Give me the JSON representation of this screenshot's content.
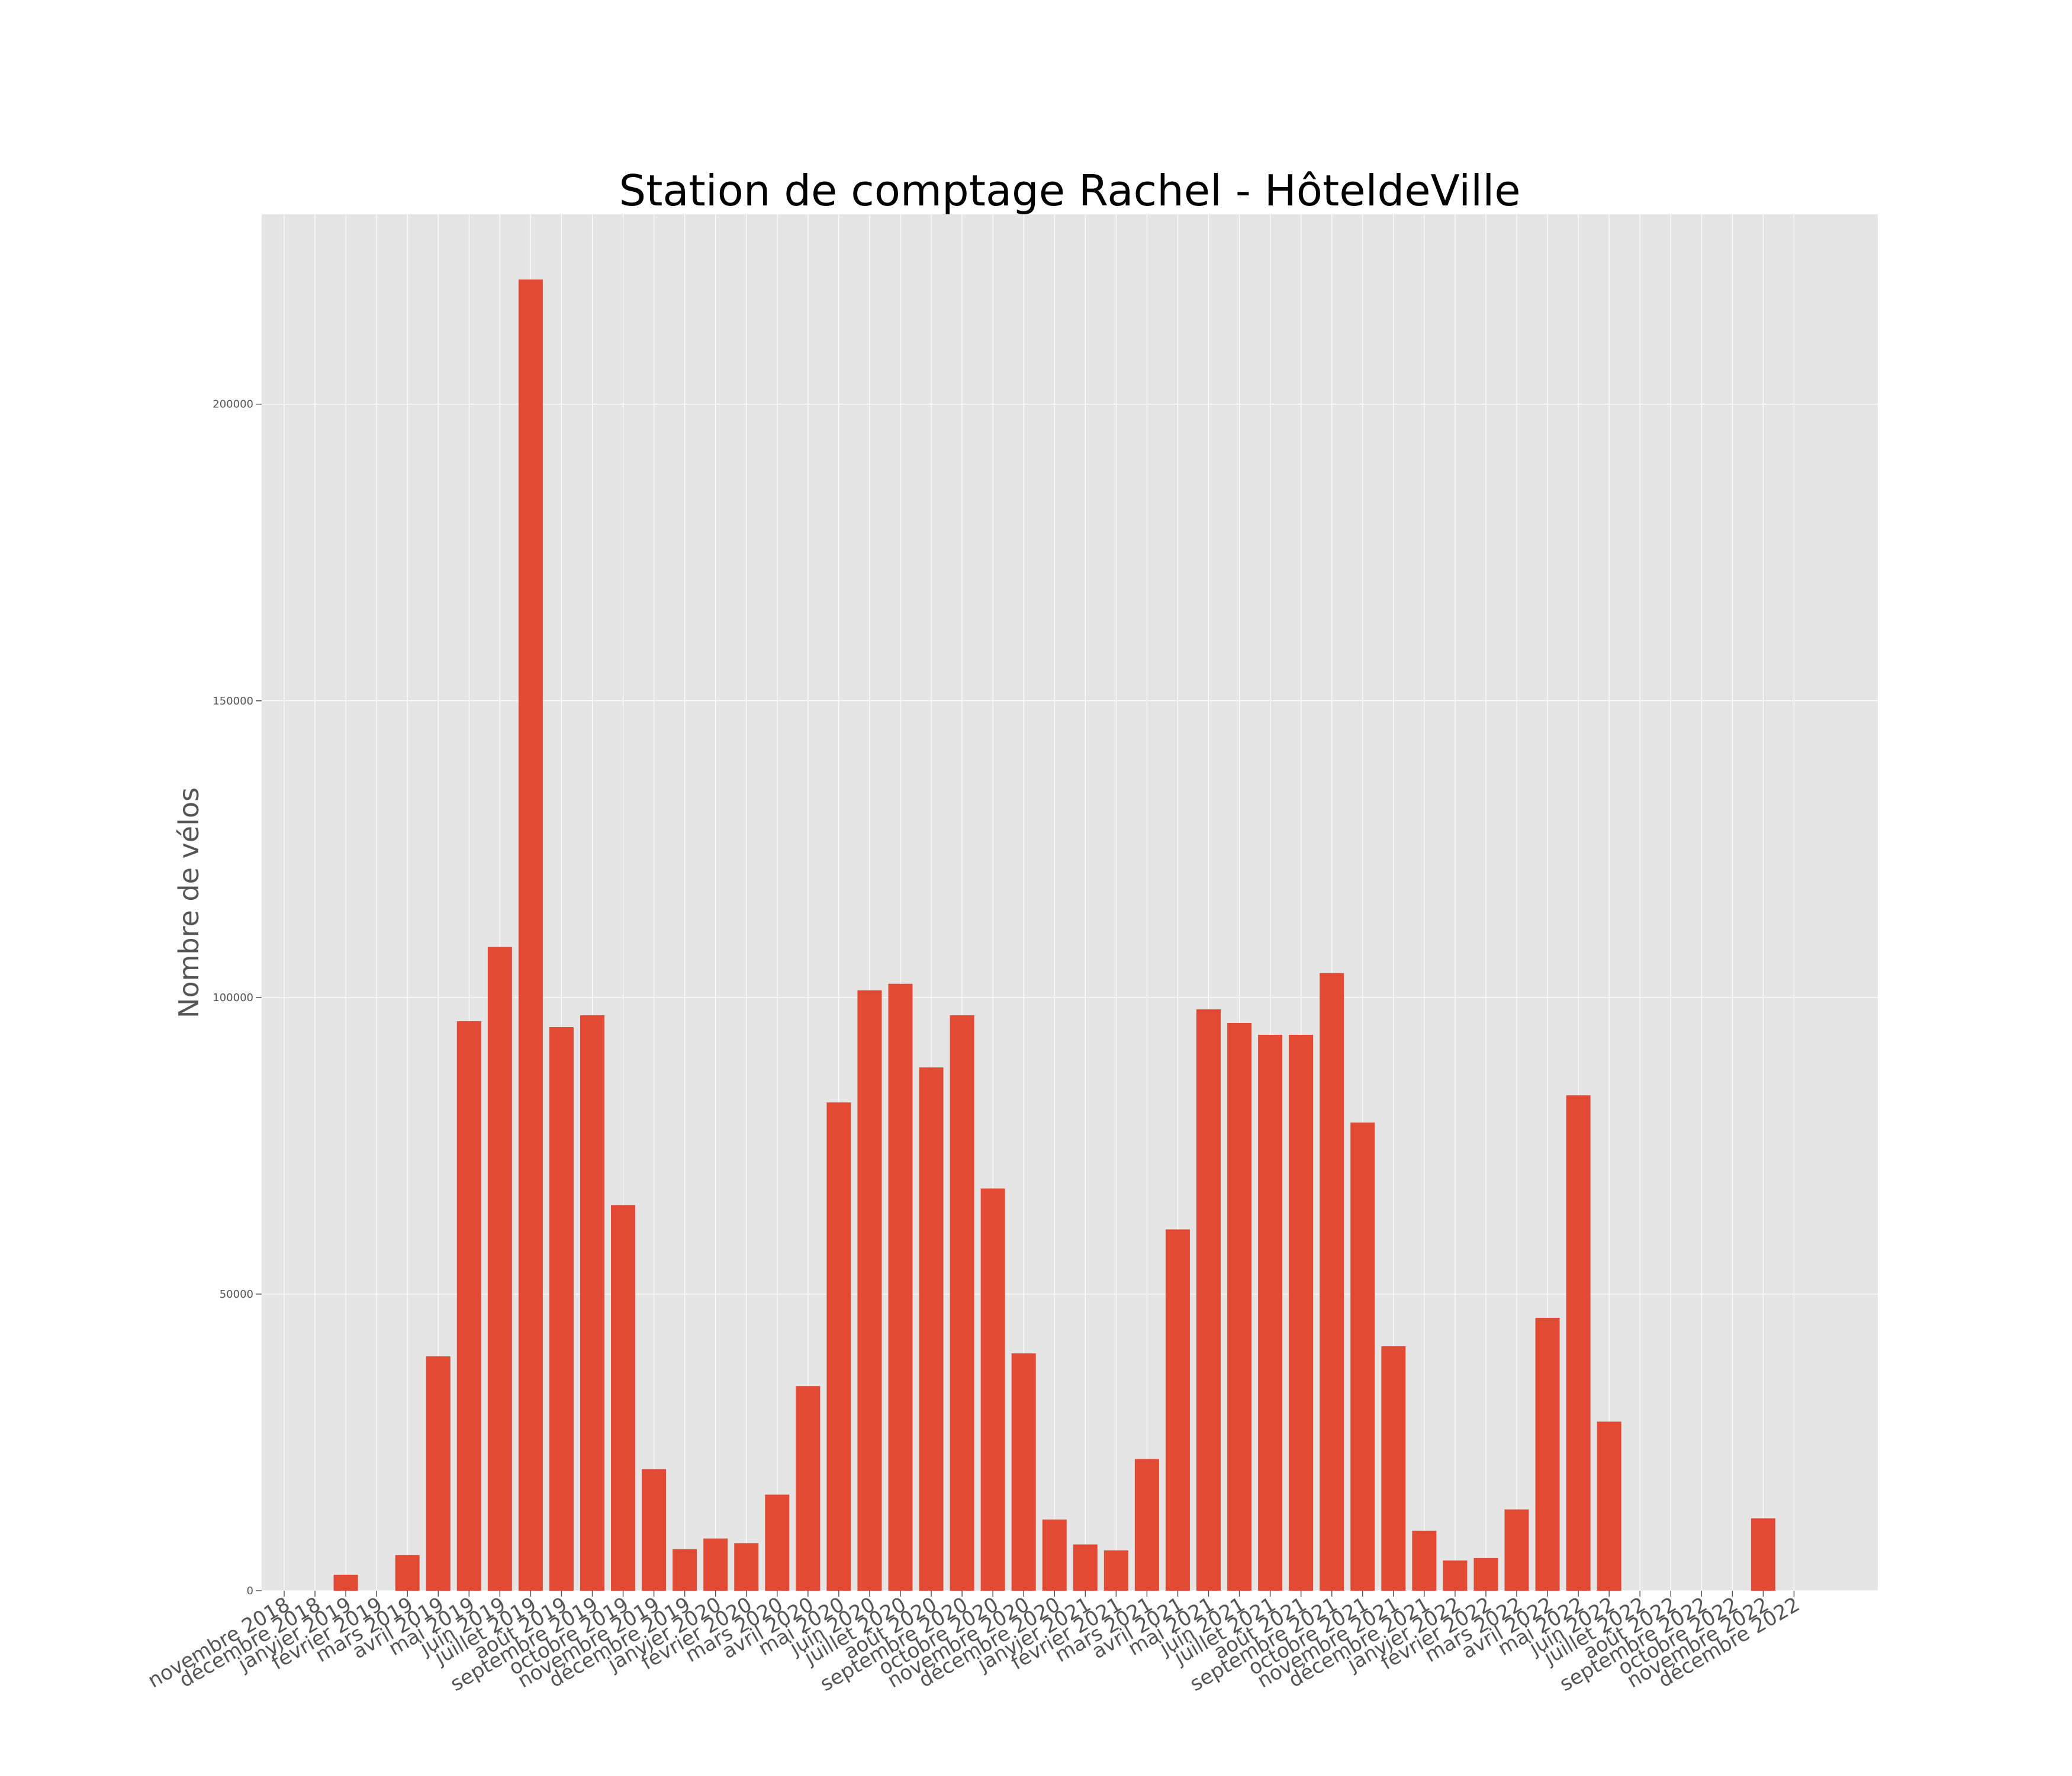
{
  "chart_data": {
    "type": "bar",
    "title": "Station de comptage Rachel - HôteldeVille",
    "xlabel": "",
    "ylabel": "Nombre de vélos",
    "ylim": [
      0,
      232000
    ],
    "yticks": [
      0,
      50000,
      100000,
      150000,
      200000
    ],
    "ytick_labels": [
      "0",
      "50000",
      "100000",
      "150000",
      "200000"
    ],
    "grid": true,
    "bar_color": "#e24a33",
    "background_color": "#e5e5e5",
    "grid_color": "#ffffff",
    "categories": [
      "novembre 2018",
      "décembre 2018",
      "janvier 2019",
      "février 2019",
      "mars 2019",
      "avril 2019",
      "mai 2019",
      "juin 2019",
      "juillet 2019",
      "août 2019",
      "septembre 2019",
      "octobre 2019",
      "novembre 2019",
      "décembre 2019",
      "janvier 2020",
      "février 2020",
      "mars 2020",
      "avril 2020",
      "mai 2020",
      "juin 2020",
      "juillet 2020",
      "août 2020",
      "septembre 2020",
      "octobre 2020",
      "novembre 2020",
      "décembre 2020",
      "janvier 2021",
      "février 2021",
      "mars 2021",
      "avril 2021",
      "mai 2021",
      "juin 2021",
      "juillet 2021",
      "août 2021",
      "septembre 2021",
      "octobre 2021",
      "novembre 2021",
      "décembre 2021",
      "janvier 2022",
      "février 2022",
      "mars 2022",
      "avril 2022",
      "mai 2022",
      "juin 2022",
      "juillet 2022",
      "août 2022",
      "septembre 2022",
      "octobre 2022",
      "novembre 2022",
      "décembre 2022"
    ],
    "values": [
      0,
      0,
      2700,
      0,
      6000,
      39500,
      96000,
      108500,
      221000,
      95000,
      97000,
      65000,
      20500,
      7000,
      8800,
      8000,
      16200,
      34500,
      82300,
      101200,
      102300,
      88200,
      97000,
      67800,
      40000,
      12000,
      7800,
      6800,
      22200,
      60900,
      98000,
      95700,
      93700,
      93700,
      104100,
      78900,
      41200,
      10100,
      5100,
      5500,
      13700,
      46000,
      83500,
      28500,
      0,
      0,
      0,
      0,
      12200,
      0
    ]
  }
}
